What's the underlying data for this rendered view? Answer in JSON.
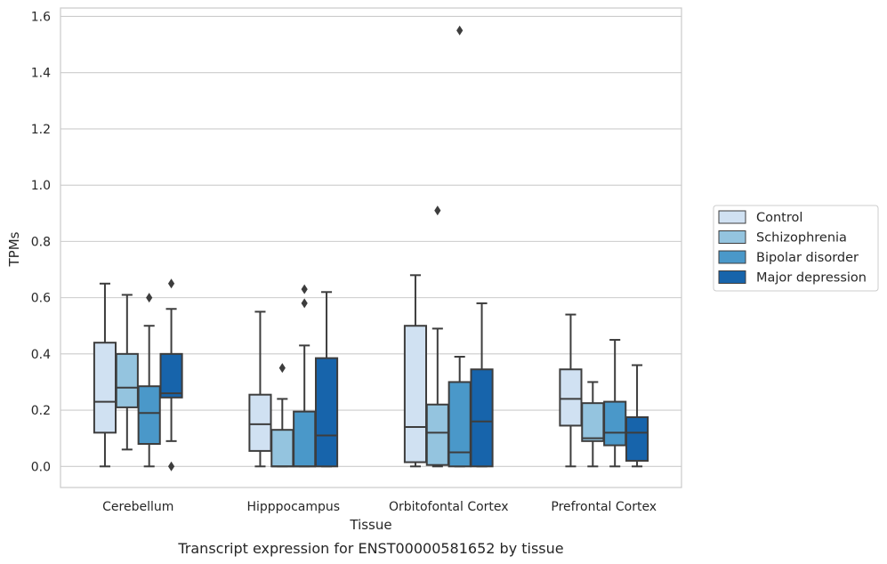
{
  "chart_data": {
    "type": "box",
    "caption": "Transcript expression for ENST00000581652 by tissue",
    "xlabel": "Tissue",
    "ylabel": "TPMs",
    "categories": [
      "Cerebellum",
      "Hipppocampus",
      "Orbitofontal Cortex",
      "Prefrontal Cortex"
    ],
    "ylim": [
      -0.075,
      1.63
    ],
    "yticks": [
      0.0,
      0.2,
      0.4,
      0.6,
      0.8,
      1.0,
      1.2,
      1.4,
      1.6
    ],
    "ytick_labels": [
      "0.0",
      "0.2",
      "0.4",
      "0.6",
      "0.8",
      "1.0",
      "1.2",
      "1.4",
      "1.6"
    ],
    "grid": true,
    "legend_position": "right",
    "series": [
      {
        "name": "Control",
        "color": "#d0e1f2",
        "boxes": [
          {
            "whislo": 0.0,
            "q1": 0.12,
            "med": 0.23,
            "q3": 0.44,
            "whishi": 0.65,
            "fliers": []
          },
          {
            "whislo": 0.0,
            "q1": 0.055,
            "med": 0.15,
            "q3": 0.255,
            "whishi": 0.55,
            "fliers": []
          },
          {
            "whislo": 0.0,
            "q1": 0.015,
            "med": 0.14,
            "q3": 0.5,
            "whishi": 0.68,
            "fliers": []
          },
          {
            "whislo": 0.0,
            "q1": 0.145,
            "med": 0.24,
            "q3": 0.345,
            "whishi": 0.54,
            "fliers": []
          }
        ]
      },
      {
        "name": "Schizophrenia",
        "color": "#94c4df",
        "boxes": [
          {
            "whislo": 0.06,
            "q1": 0.21,
            "med": 0.28,
            "q3": 0.4,
            "whishi": 0.61,
            "fliers": []
          },
          {
            "whislo": 0.0,
            "q1": 0.0,
            "med": 0.0,
            "q3": 0.13,
            "whishi": 0.24,
            "fliers": [
              0.35
            ]
          },
          {
            "whislo": 0.0,
            "q1": 0.005,
            "med": 0.12,
            "q3": 0.22,
            "whishi": 0.49,
            "fliers": [
              0.91
            ]
          },
          {
            "whislo": 0.0,
            "q1": 0.09,
            "med": 0.1,
            "q3": 0.225,
            "whishi": 0.3,
            "fliers": []
          }
        ]
      },
      {
        "name": "Bipolar disorder",
        "color": "#4a98c9",
        "boxes": [
          {
            "whislo": 0.0,
            "q1": 0.08,
            "med": 0.19,
            "q3": 0.285,
            "whishi": 0.5,
            "fliers": [
              0.6
            ]
          },
          {
            "whislo": 0.0,
            "q1": 0.0,
            "med": 0.0,
            "q3": 0.195,
            "whishi": 0.43,
            "fliers": [
              0.58,
              0.63
            ]
          },
          {
            "whislo": 0.0,
            "q1": 0.0,
            "med": 0.05,
            "q3": 0.3,
            "whishi": 0.39,
            "fliers": [
              1.55
            ]
          },
          {
            "whislo": 0.0,
            "q1": 0.075,
            "med": 0.12,
            "q3": 0.23,
            "whishi": 0.45,
            "fliers": []
          }
        ]
      },
      {
        "name": "Major depression",
        "color": "#1764ab",
        "boxes": [
          {
            "whislo": 0.09,
            "q1": 0.245,
            "med": 0.26,
            "q3": 0.4,
            "whishi": 0.56,
            "fliers": [
              0.0,
              0.65
            ]
          },
          {
            "whislo": 0.0,
            "q1": 0.0,
            "med": 0.11,
            "q3": 0.385,
            "whishi": 0.62,
            "fliers": []
          },
          {
            "whislo": 0.0,
            "q1": 0.0,
            "med": 0.16,
            "q3": 0.345,
            "whishi": 0.58,
            "fliers": []
          },
          {
            "whislo": 0.0,
            "q1": 0.02,
            "med": 0.12,
            "q3": 0.175,
            "whishi": 0.36,
            "fliers": []
          }
        ]
      }
    ]
  }
}
